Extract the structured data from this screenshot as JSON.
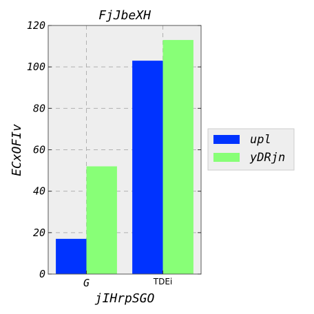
{
  "chart_data": {
    "type": "bar",
    "title": "FjJbeXH",
    "xlabel": "jIHrpSGO",
    "ylabel": "ECxOFIv",
    "categories": [
      "G",
      "TDEi"
    ],
    "series": [
      {
        "name": "upl",
        "values": [
          17,
          103
        ],
        "color": "#0033ff"
      },
      {
        "name": "yDRjn",
        "values": [
          52,
          113
        ],
        "color": "#88ff77"
      }
    ],
    "ylim": [
      0,
      120
    ],
    "yticks": [
      0,
      20,
      40,
      60,
      80,
      100,
      120
    ],
    "grid": true,
    "legend_position": "center-right",
    "plot_background": "#eeeeee"
  }
}
